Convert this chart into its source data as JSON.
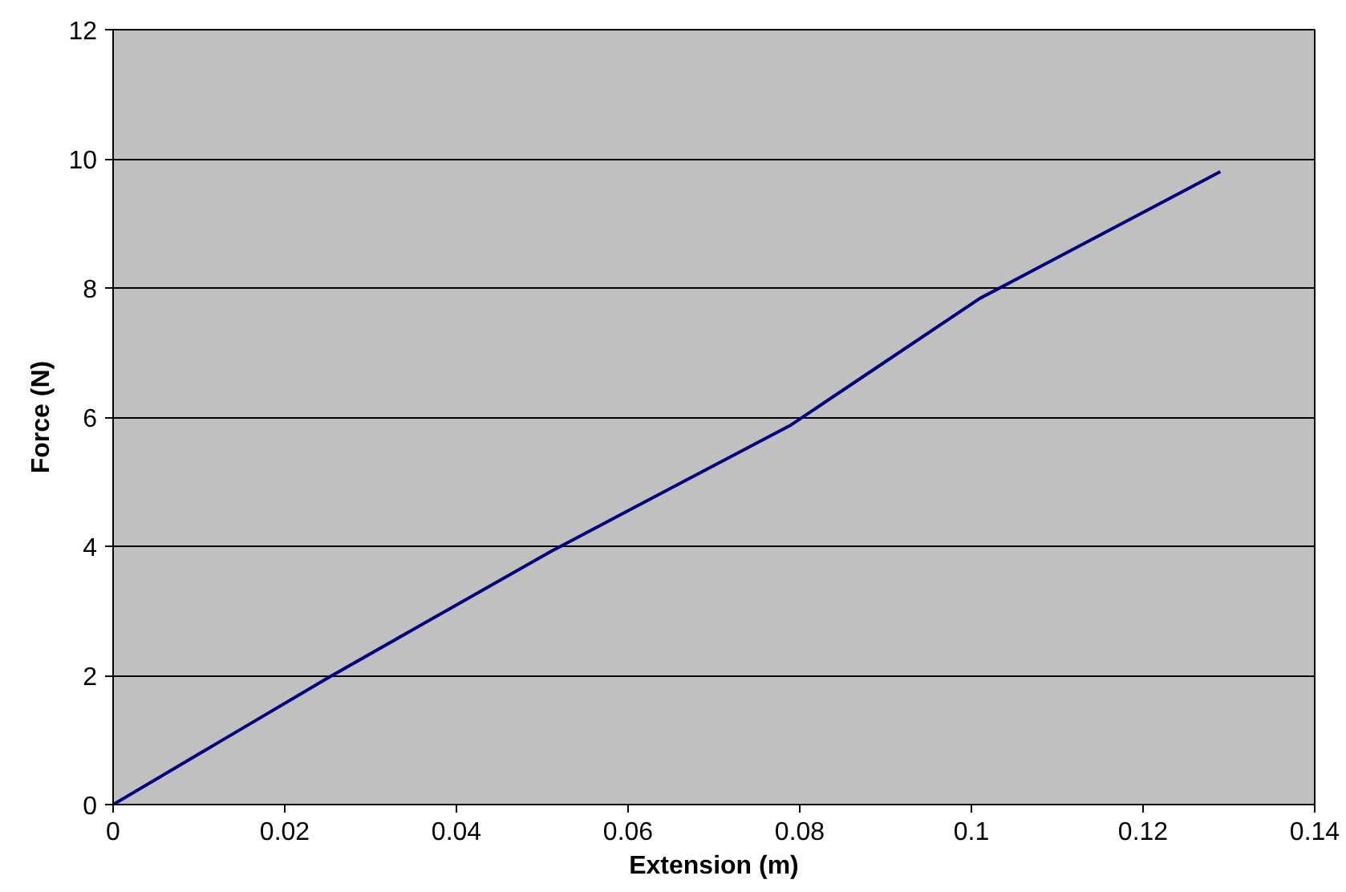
{
  "chart_data": {
    "type": "line",
    "xlabel": "Extension (m)",
    "ylabel": "Force (N)",
    "x": [
      0,
      0.0125,
      0.025,
      0.038,
      0.051,
      0.065,
      0.079,
      0.09,
      0.101,
      0.115,
      0.129
    ],
    "series": [
      {
        "color": "#000080",
        "values": [
          0,
          0.98,
          1.96,
          2.94,
          3.92,
          4.9,
          5.88,
          6.86,
          7.84,
          8.82,
          9.8
        ]
      }
    ],
    "xlim": [
      0,
      0.14
    ],
    "xticks": [
      0,
      0.02,
      0.04,
      0.06,
      0.08,
      0.1,
      0.12,
      0.14
    ],
    "ylim": [
      0,
      12
    ],
    "yticks": [
      0,
      2,
      4,
      6,
      8,
      10,
      12
    ],
    "grid": "y",
    "marker": "none",
    "line_style": "solid"
  }
}
